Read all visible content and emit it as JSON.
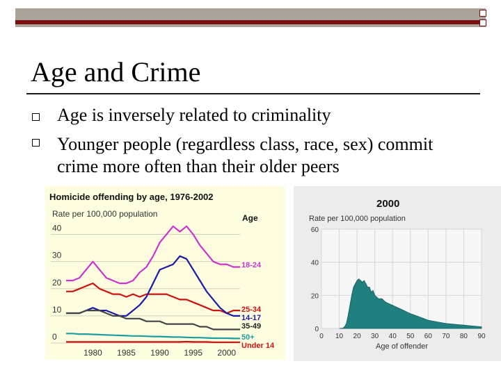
{
  "slide": {
    "title": "Age and Crime",
    "bullets": [
      "Age is inversely related to criminality",
      "Younger people (regardless class, race, sex) commit",
      "crime more often than their older peers"
    ]
  },
  "chart_data": [
    {
      "type": "line",
      "title": "Homicide offending by age, 1976-2002",
      "ylabel": "Rate per 100,000 population",
      "legend_title": "Age",
      "x": [
        1976,
        1977,
        1978,
        1979,
        1980,
        1981,
        1982,
        1983,
        1984,
        1985,
        1986,
        1987,
        1988,
        1989,
        1990,
        1991,
        1992,
        1993,
        1994,
        1995,
        1996,
        1997,
        1998,
        1999,
        2000,
        2001,
        2002
      ],
      "xticks": [
        "1980",
        "1985",
        "1990",
        "1995",
        "2000"
      ],
      "yticks": [
        "0",
        "10",
        "20",
        "30",
        "40"
      ],
      "ylim": [
        0,
        45
      ],
      "series": [
        {
          "name": "18-24",
          "color": "#cc33cc",
          "values": [
            23,
            23,
            24,
            27,
            30,
            27,
            24,
            23,
            22,
            22,
            23,
            26,
            28,
            32,
            37,
            40,
            43,
            41,
            43,
            40,
            36,
            33,
            30,
            29,
            29,
            28,
            28
          ]
        },
        {
          "name": "25-34",
          "color": "#cc1111",
          "values": [
            19,
            19,
            20,
            21,
            22,
            20,
            19,
            18,
            18,
            17,
            18,
            17,
            18,
            18,
            18,
            18,
            17,
            16,
            16,
            15,
            14,
            13,
            12,
            12,
            11,
            12,
            12
          ]
        },
        {
          "name": "14-17",
          "color": "#1a1aa8",
          "values": [
            11,
            11,
            11,
            12,
            13,
            12,
            12,
            11,
            10,
            10,
            12,
            14,
            17,
            22,
            27,
            28,
            29,
            32,
            31,
            27,
            23,
            19,
            16,
            13,
            11,
            10,
            10
          ]
        },
        {
          "name": "35-49",
          "color": "#444444",
          "values": [
            11,
            11,
            11,
            12,
            12,
            12,
            11,
            10,
            10,
            9,
            9,
            9,
            8,
            8,
            8,
            7,
            7,
            7,
            7,
            7,
            6,
            6,
            5,
            5,
            5,
            5,
            5
          ]
        },
        {
          "name": "50+",
          "color": "#1a9e9e",
          "values": [
            3.5,
            3.5,
            3.3,
            3.3,
            3.2,
            3.1,
            3,
            2.9,
            2.8,
            2.7,
            2.6,
            2.6,
            2.5,
            2.4,
            2.4,
            2.3,
            2.2,
            2.2,
            2.1,
            2,
            2,
            1.9,
            1.8,
            1.8,
            1.8,
            1.7,
            1.7
          ]
        },
        {
          "name": "Under 14",
          "color": "#cc1111",
          "values": [
            0.4,
            0.4,
            0.4,
            0.4,
            0.4,
            0.4,
            0.4,
            0.4,
            0.4,
            0.4,
            0.4,
            0.4,
            0.4,
            0.4,
            0.4,
            0.4,
            0.4,
            0.4,
            0.5,
            0.4,
            0.4,
            0.4,
            0.3,
            0.3,
            0.3,
            0.3,
            0.3
          ]
        }
      ]
    },
    {
      "type": "area",
      "title": "2000",
      "ylabel": "Rate per 100,000 population",
      "xlabel": "Age of offender",
      "xticks": [
        "0",
        "10",
        "20",
        "30",
        "40",
        "50",
        "60",
        "70",
        "80",
        "90"
      ],
      "yticks": [
        "0",
        "20",
        "40",
        "60"
      ],
      "xlim": [
        0,
        90
      ],
      "ylim": [
        0,
        60
      ],
      "color": "#1f7f7f",
      "x": [
        10,
        12,
        13,
        14,
        15,
        16,
        17,
        18,
        19,
        20,
        21,
        22,
        23,
        24,
        25,
        26,
        27,
        28,
        29,
        30,
        32,
        34,
        36,
        38,
        40,
        42,
        44,
        46,
        48,
        50,
        55,
        60,
        65,
        70,
        75,
        80,
        85,
        90
      ],
      "y": [
        0,
        0.2,
        1,
        3,
        8,
        14,
        20,
        25,
        27,
        29,
        30,
        29,
        28,
        29,
        27,
        25,
        25,
        22,
        23,
        20,
        18,
        18,
        16,
        15,
        14,
        13,
        12,
        11,
        10,
        9,
        7,
        5,
        4,
        3,
        2.5,
        2,
        1.5,
        1
      ]
    }
  ]
}
